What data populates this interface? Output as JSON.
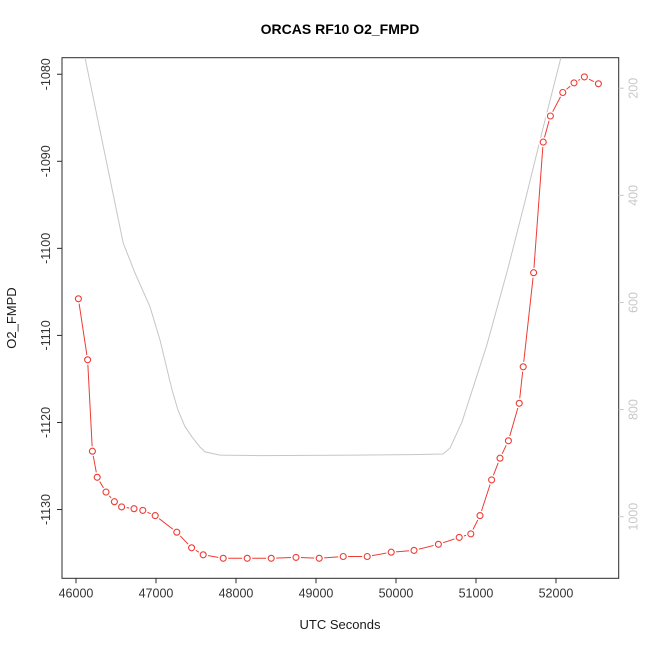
{
  "colors": {
    "background": "#ffffff",
    "series_red": "#ee3b33",
    "series_gray": "#c6c6c6",
    "axis_line": "#2b2b2b",
    "tick_label_dark": "#343434",
    "tick_label_right_gray": "#c8c8c8"
  },
  "chart_data": {
    "type": "line",
    "title": "ORCAS RF10 O2_FMPD",
    "xlabel": "UTC Seconds",
    "ylabel": "O2_FMPD",
    "grid": false,
    "legend": "none",
    "xlim": [
      45825,
      52784
    ],
    "x_ticks": [
      46000,
      47000,
      48000,
      49000,
      50000,
      51000,
      52000
    ],
    "ylim_left": [
      -1137.9,
      -1078.1
    ],
    "y_ticks_left": [
      -1080,
      -1090,
      -1100,
      -1110,
      -1120,
      -1130
    ],
    "ylim_right_top_to_bottom": [
      143,
      1115
    ],
    "y_ticks_right": [
      200,
      400,
      600,
      800,
      1000
    ],
    "y_axis_right_reversed_downward": true,
    "series": [
      {
        "name": "secondary-gray-profile",
        "axis": "right",
        "style": "plain-line",
        "color": "#c6c6c6",
        "points": [
          [
            46112,
            143
          ],
          [
            46590,
            489
          ],
          [
            46737,
            545
          ],
          [
            46925,
            608
          ],
          [
            47050,
            670
          ],
          [
            47200,
            763
          ],
          [
            47275,
            801
          ],
          [
            47362,
            832
          ],
          [
            47450,
            851
          ],
          [
            47550,
            870
          ],
          [
            47615,
            879
          ],
          [
            47800,
            885
          ],
          [
            48300,
            886
          ],
          [
            49500,
            885
          ],
          [
            50200,
            884
          ],
          [
            50587,
            883
          ],
          [
            50675,
            872
          ],
          [
            50825,
            823
          ],
          [
            51137,
            679
          ],
          [
            51400,
            536
          ],
          [
            51612,
            412
          ],
          [
            51825,
            282
          ],
          [
            52062,
            143
          ]
        ]
      },
      {
        "name": "O2_FMPD",
        "axis": "left",
        "style": "open-circle-line",
        "color": "#ee3b33",
        "points": [
          [
            46030,
            -1105.8
          ],
          [
            46145,
            -1112.8
          ],
          [
            46205,
            -1123.3
          ],
          [
            46265,
            -1126.3
          ],
          [
            46375,
            -1128.0
          ],
          [
            46480,
            -1129.1
          ],
          [
            46570,
            -1129.7
          ],
          [
            46725,
            -1129.9
          ],
          [
            46835,
            -1130.1
          ],
          [
            46990,
            -1130.7
          ],
          [
            47260,
            -1132.6
          ],
          [
            47445,
            -1134.4
          ],
          [
            47590,
            -1135.2
          ],
          [
            47840,
            -1135.6
          ],
          [
            48140,
            -1135.6
          ],
          [
            48440,
            -1135.6
          ],
          [
            48750,
            -1135.5
          ],
          [
            49040,
            -1135.6
          ],
          [
            49340,
            -1135.4
          ],
          [
            49640,
            -1135.4
          ],
          [
            49940,
            -1134.9
          ],
          [
            50225,
            -1134.7
          ],
          [
            50530,
            -1134.0
          ],
          [
            50790,
            -1133.2
          ],
          [
            50935,
            -1132.8
          ],
          [
            51050,
            -1130.7
          ],
          [
            51195,
            -1126.6
          ],
          [
            51300,
            -1124.1
          ],
          [
            51405,
            -1122.1
          ],
          [
            51540,
            -1117.8
          ],
          [
            51590,
            -1113.6
          ],
          [
            51720,
            -1102.8
          ],
          [
            51840,
            -1087.8
          ],
          [
            51930,
            -1084.8
          ],
          [
            52085,
            -1082.1
          ],
          [
            52225,
            -1081.0
          ],
          [
            52355,
            -1080.3
          ],
          [
            52530,
            -1081.1
          ]
        ]
      }
    ]
  }
}
